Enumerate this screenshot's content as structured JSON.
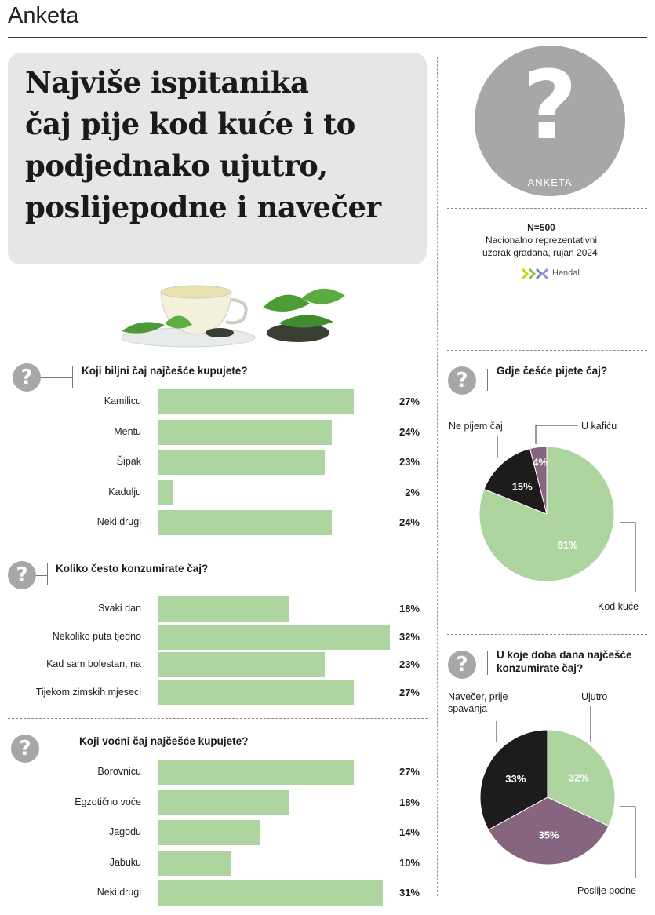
{
  "header": {
    "section": "Anketa"
  },
  "headline": {
    "lines": [
      "Najviše ispitanika",
      "čaj pije kod kuće i to",
      "podjednako ujutro,",
      "poslijepodne i navečer"
    ]
  },
  "badge": {
    "symbol": "?",
    "label": "ANKETA"
  },
  "survey_meta": {
    "sample": "N=500",
    "line1": "Nacionalno reprezentativni",
    "line2": "uzorak građana, rujan 2024.",
    "agency": "Hendal"
  },
  "icons": {
    "question": "question-mark-icon",
    "tea": "tea-cup-illustration",
    "logo": "hendal-logo"
  },
  "colors": {
    "green": "#aed5a0",
    "black": "#1e1b1c",
    "purple": "#86667e",
    "grey": "#a7a7a7"
  },
  "chart_data": [
    {
      "type": "bar",
      "title": "Koji biljni čaj najčešće kupujete?",
      "categories": [
        "Kamilicu",
        "Mentu",
        "Šipak",
        "Kadulju",
        "Neki drugi"
      ],
      "values": [
        27,
        24,
        23,
        2,
        24
      ],
      "value_labels": [
        "27%",
        "24%",
        "23%",
        "2%",
        "24%"
      ]
    },
    {
      "type": "bar",
      "title": "Koliko često konzumirate čaj?",
      "categories": [
        "Svaki dan",
        "Nekoliko puta tjedno",
        "Kad sam bolestan, na",
        "Tijekom zimskih mjeseci"
      ],
      "values": [
        18,
        32,
        23,
        27
      ],
      "value_labels": [
        "18%",
        "32%",
        "23%",
        "27%"
      ]
    },
    {
      "type": "bar",
      "title": "Koji voćni čaj najčešće kupujete?",
      "categories": [
        "Borovnicu",
        "Egzotično voće",
        "Jagodu",
        "Jabuku",
        "Neki drugi"
      ],
      "values": [
        27,
        18,
        14,
        10,
        31
      ],
      "value_labels": [
        "27%",
        "18%",
        "14%",
        "10%",
        "31%"
      ]
    },
    {
      "type": "pie",
      "title": "Gdje češće pijete čaj?",
      "slices": [
        {
          "label": "Kod kuće",
          "value": 81,
          "value_label": "81%",
          "color": "#aed5a0"
        },
        {
          "label": "Ne pijem čaj",
          "value": 15,
          "value_label": "15%",
          "color": "#1e1b1c"
        },
        {
          "label": "U kafiću",
          "value": 4,
          "value_label": "4%",
          "color": "#86667e"
        }
      ]
    },
    {
      "type": "pie",
      "title_lines": [
        "U koje doba dana najčešće",
        "konzumirate čaj?"
      ],
      "slices": [
        {
          "label": "Ujutro",
          "value": 32,
          "value_label": "32%",
          "color": "#aed5a0"
        },
        {
          "label": "Poslije podne",
          "value": 35,
          "value_label": "35%",
          "color": "#86667e"
        },
        {
          "label_lines": [
            "Navečer, prije",
            "spavanja"
          ],
          "value": 33,
          "value_label": "33%",
          "color": "#1e1b1c"
        }
      ]
    }
  ]
}
